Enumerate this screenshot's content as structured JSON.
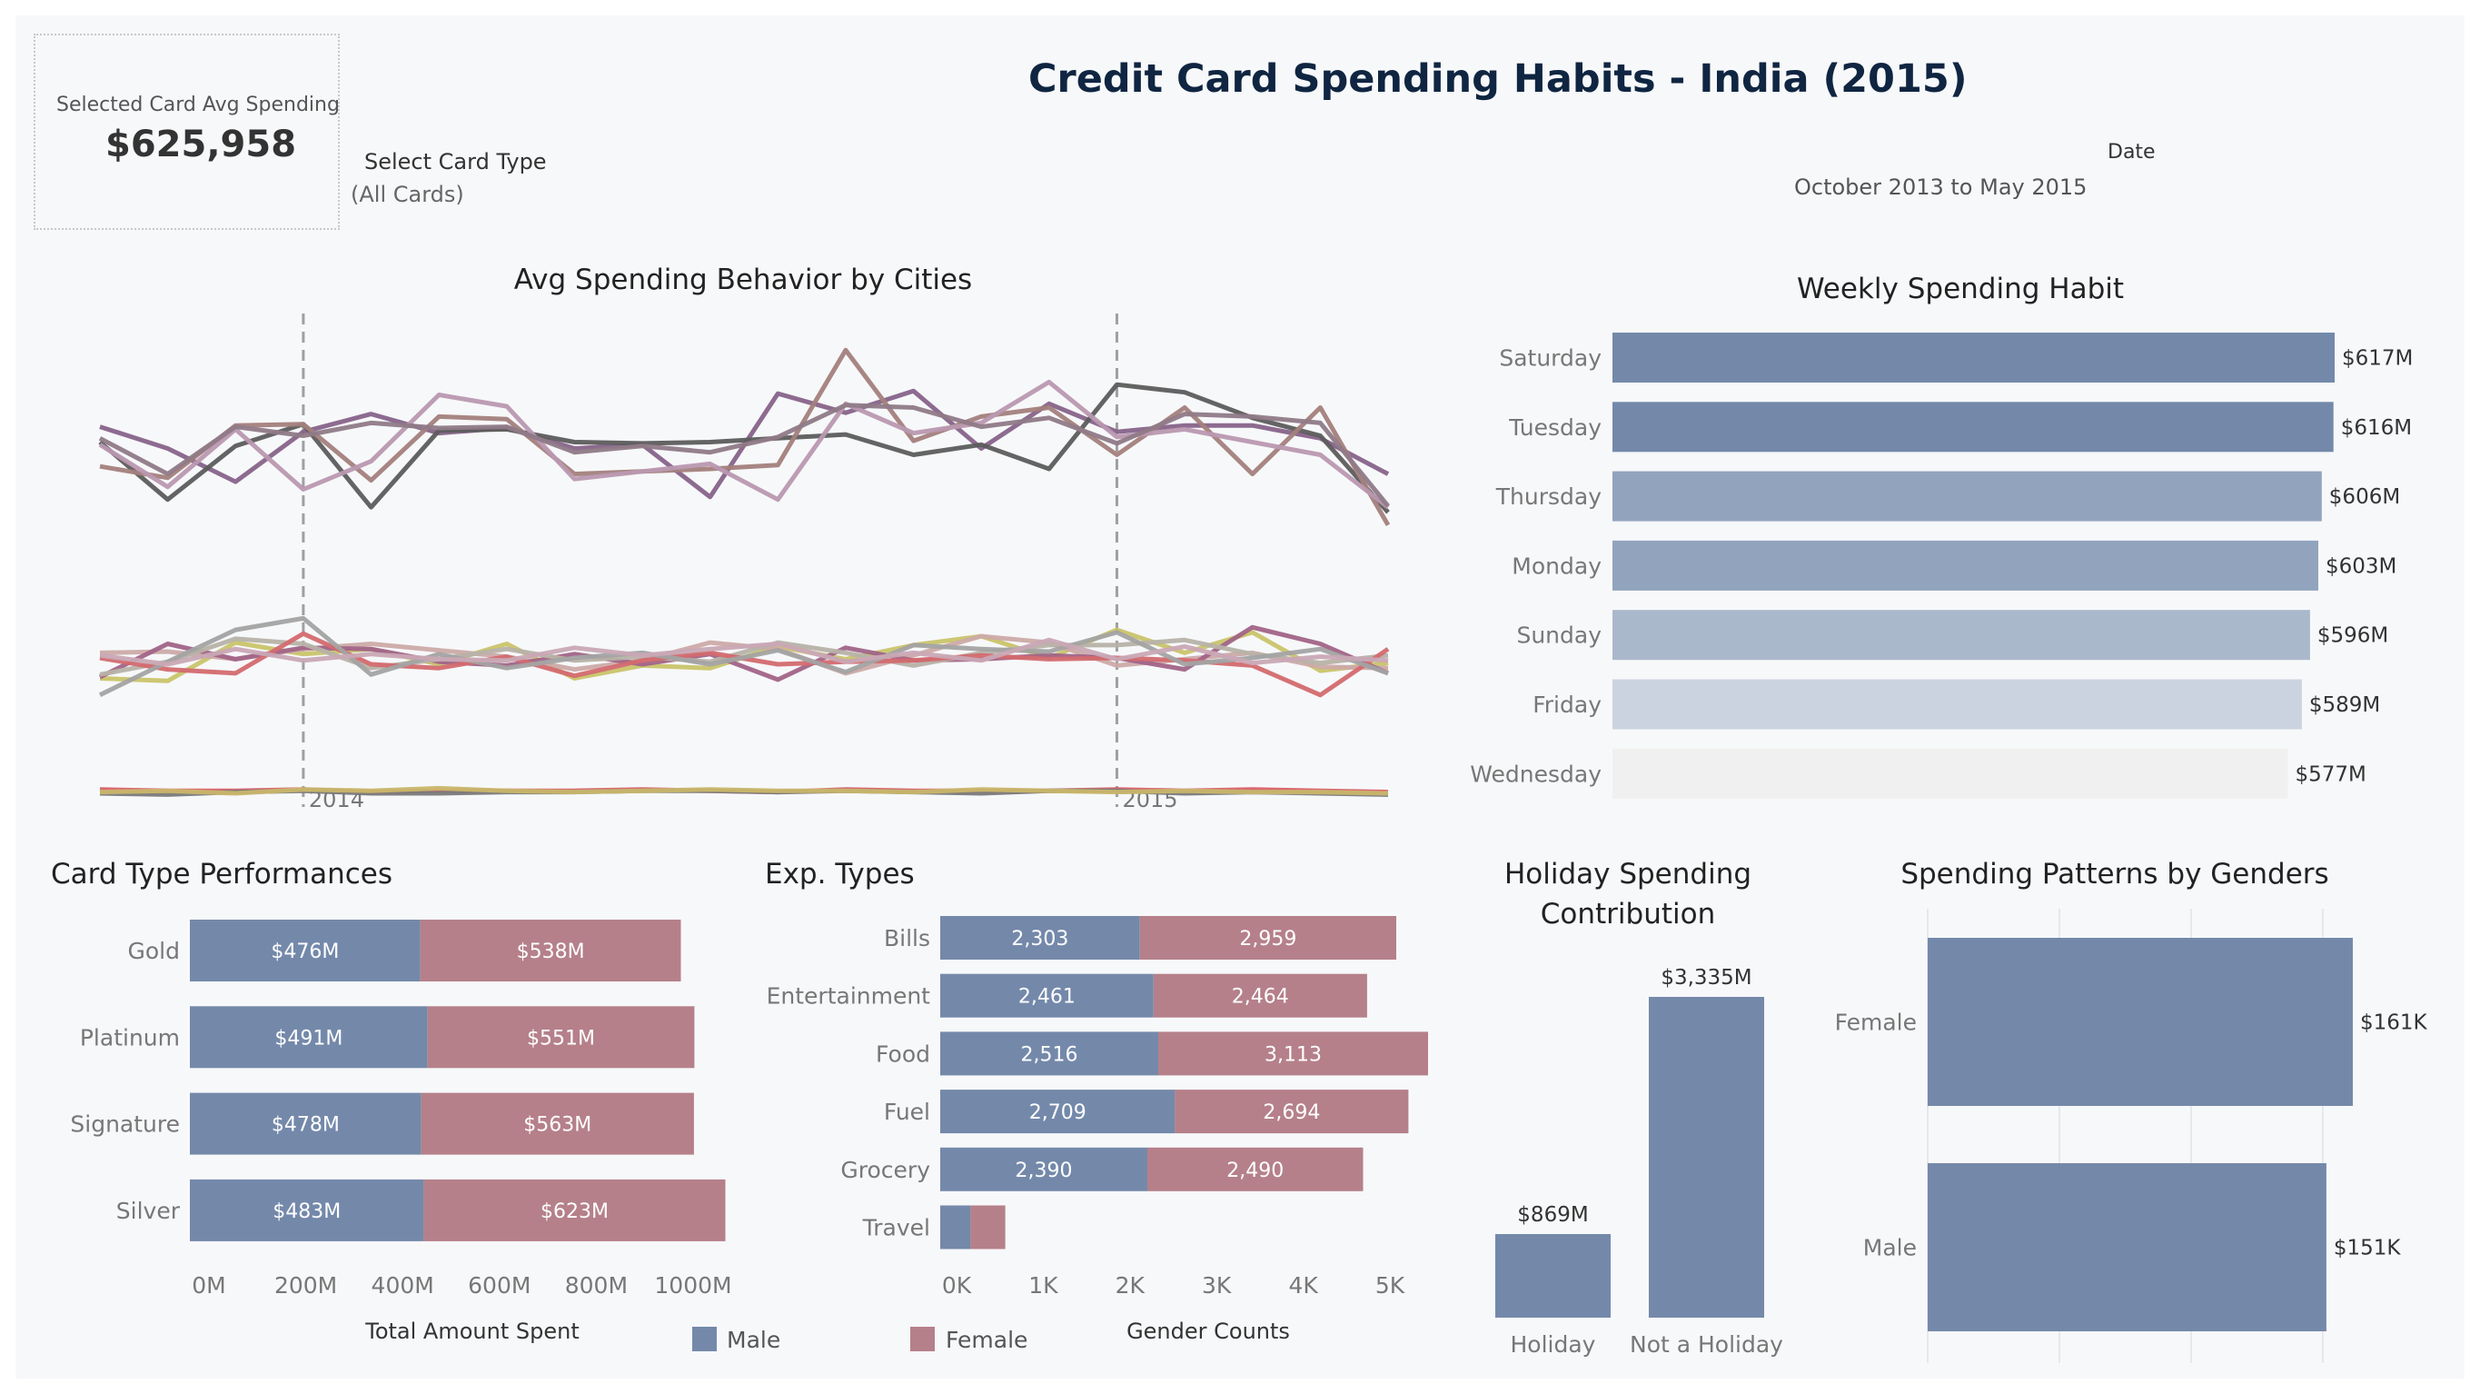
{
  "header": {
    "title": "Credit Card Spending Habits - India (2015)",
    "kpi_label": "Selected Card Avg Spending",
    "kpi_value": "$625,958",
    "filter_label": "Select Card Type",
    "filter_value": "(All Cards)",
    "date_label": "Date",
    "date_value": "October 2013 to May 2015"
  },
  "legend": {
    "male": "Male",
    "female": "Female",
    "male_color": "#7489aa",
    "female_color": "#b5808a"
  },
  "chart_data": [
    {
      "id": "cities",
      "type": "line",
      "title": "Avg Spending Behavior by Cities",
      "x": [
        "2013-10",
        "2013-11",
        "2013-12",
        "2014-01",
        "2014-02",
        "2014-03",
        "2014-04",
        "2014-05",
        "2014-06",
        "2014-07",
        "2014-08",
        "2014-09",
        "2014-10",
        "2014-11",
        "2014-12",
        "2015-01",
        "2015-02",
        "2015-03",
        "2015-04",
        "2015-05"
      ],
      "reference_lines": [
        {
          "x": "2014-01",
          "label": "2014"
        },
        {
          "x": "2015-01",
          "label": "2015"
        }
      ],
      "series": [
        {
          "color": "#87638a",
          "values": [
            278,
            295,
            321,
            282,
            268,
            283,
            279,
            295,
            292,
            333,
            252,
            267,
            250,
            295,
            260,
            282,
            277,
            277,
            287,
            315
          ]
        },
        {
          "color": "#5c5c5c",
          "values": [
            290,
            335,
            293,
            276,
            341,
            281,
            280,
            290,
            291,
            290,
            287,
            284,
            300,
            292,
            311,
            245,
            251,
            271,
            285,
            345
          ]
        },
        {
          "color": "#a3807c",
          "values": [
            309,
            318,
            277,
            276,
            320,
            270,
            272,
            315,
            313,
            311,
            308,
            218,
            289,
            270,
            263,
            300,
            263,
            315,
            263,
            355
          ]
        },
        {
          "color": "#b998b0",
          "values": [
            292,
            325,
            280,
            327,
            305,
            253,
            262,
            319,
            313,
            307,
            335,
            260,
            283,
            275,
            243,
            286,
            280,
            290,
            300,
            341
          ]
        },
        {
          "color": "#8f7a87",
          "values": [
            287,
            315,
            278,
            285,
            275,
            279,
            278,
            298,
            293,
            298,
            286,
            261,
            263,
            278,
            271,
            291,
            268,
            270,
            275,
            340
          ]
        },
        {
          "color": "#c9c46a",
          "values": [
            475,
            477,
            447,
            456,
            452,
            464,
            448,
            475,
            465,
            467,
            450,
            460,
            449,
            442,
            459,
            437,
            455,
            439,
            469,
            463
          ]
        },
        {
          "color": "#ccaaa8",
          "values": [
            455,
            454,
            460,
            452,
            448,
            453,
            458,
            468,
            461,
            447,
            452,
            471,
            457,
            442,
            447,
            465,
            460,
            455,
            466,
            467
          ]
        },
        {
          "color": "#a16487",
          "values": [
            474,
            448,
            460,
            451,
            452,
            462,
            465,
            456,
            464,
            456,
            476,
            451,
            461,
            460,
            457,
            459,
            468,
            435,
            448,
            471
          ]
        },
        {
          "color": "#b7b2a8",
          "values": [
            472,
            462,
            444,
            448,
            467,
            460,
            452,
            461,
            458,
            462,
            447,
            455,
            465,
            455,
            449,
            449,
            445,
            456,
            463,
            457
          ]
        },
        {
          "color": "#d36a6f",
          "values": [
            459,
            468,
            471,
            440,
            464,
            467,
            458,
            473,
            461,
            455,
            464,
            462,
            461,
            457,
            460,
            459,
            461,
            465,
            488,
            452
          ]
        },
        {
          "color": "#a3a3a3",
          "values": [
            488,
            462,
            437,
            428,
            472,
            456,
            467,
            459,
            455,
            464,
            453,
            470,
            449,
            452,
            454,
            439,
            464,
            459,
            452,
            471
          ]
        },
        {
          "color": "#c9a8b5",
          "values": [
            457,
            464,
            452,
            461,
            456,
            460,
            461,
            451,
            457,
            452,
            448,
            462,
            455,
            461,
            445,
            460,
            450,
            463,
            458,
            461
          ]
        },
        {
          "color": "#d95f68",
          "values": [
            562,
            563,
            563,
            562,
            564,
            563,
            563,
            563,
            562,
            563,
            564,
            562,
            563,
            563,
            563,
            562,
            563,
            562,
            563,
            564
          ]
        },
        {
          "color": "#7a7a7a",
          "values": [
            565,
            566,
            564,
            563,
            565,
            565,
            564,
            564,
            563,
            563,
            564,
            563,
            564,
            565,
            563,
            563,
            565,
            564,
            565,
            566
          ]
        },
        {
          "color": "#c9b66a",
          "values": [
            564,
            563,
            565,
            562,
            563,
            561,
            563,
            564,
            563,
            562,
            563,
            563,
            564,
            562,
            563,
            564,
            563,
            564,
            564,
            565
          ]
        }
      ]
    },
    {
      "id": "weekly",
      "type": "bar",
      "title": "Weekly Spending Habit",
      "categories": [
        "Saturday",
        "Tuesday",
        "Thursday",
        "Monday",
        "Sunday",
        "Friday",
        "Wednesday"
      ],
      "values": [
        617,
        616,
        606,
        603,
        596,
        589,
        577
      ],
      "labels": [
        "$617M",
        "$616M",
        "$606M",
        "$603M",
        "$596M",
        "$589M",
        "$577M"
      ],
      "colors": [
        "#7489aa",
        "#7489aa",
        "#92a4bd",
        "#92a4bd",
        "#aab8cb",
        "#ccd3e0",
        "#f0f0f0"
      ]
    },
    {
      "id": "cardtype",
      "type": "bar",
      "title": "Card Type Performances",
      "xlabel": "Total Amount Spent",
      "categories": [
        "Gold",
        "Platinum",
        "Signature",
        "Silver"
      ],
      "series": [
        {
          "name": "Male",
          "values": [
            476,
            491,
            478,
            483
          ],
          "labels": [
            "$476M",
            "$491M",
            "$478M",
            "$483M"
          ]
        },
        {
          "name": "Female",
          "values": [
            538,
            551,
            563,
            623
          ],
          "labels": [
            "$538M",
            "$551M",
            "$563M",
            "$623M"
          ]
        }
      ],
      "xticks": [
        "0M",
        "200M",
        "400M",
        "600M",
        "800M",
        "1000M"
      ],
      "xlim": [
        0,
        1100
      ]
    },
    {
      "id": "exptypes",
      "type": "bar",
      "title": "Exp. Types",
      "xlabel": "Gender Counts",
      "categories": [
        "Bills",
        "Entertainment",
        "Food",
        "Fuel",
        "Grocery",
        "Travel"
      ],
      "series": [
        {
          "name": "Male",
          "values": [
            2303,
            2461,
            2516,
            2709,
            2390,
            350
          ],
          "labels": [
            "2,303",
            "2,461",
            "2,516",
            "2,709",
            "2,390",
            ""
          ]
        },
        {
          "name": "Female",
          "values": [
            2959,
            2464,
            3113,
            2694,
            2490,
            400
          ],
          "labels": [
            "2,959",
            "2,464",
            "3,113",
            "2,694",
            "2,490",
            ""
          ]
        }
      ],
      "xticks": [
        "0K",
        "1K",
        "2K",
        "3K",
        "4K",
        "5K"
      ],
      "xlim": [
        0,
        5000
      ]
    },
    {
      "id": "holiday",
      "type": "bar",
      "title": "Holiday Spending Contribution",
      "categories": [
        "Holiday",
        "Not a Holiday"
      ],
      "values": [
        869,
        3335
      ],
      "labels": [
        "$869M",
        "$3,335M"
      ]
    },
    {
      "id": "gender",
      "type": "bar",
      "title": "Spending Patterns by Genders",
      "categories": [
        "Female",
        "Male"
      ],
      "values": [
        161,
        151
      ],
      "labels": [
        "$161K",
        "$151K"
      ]
    }
  ]
}
